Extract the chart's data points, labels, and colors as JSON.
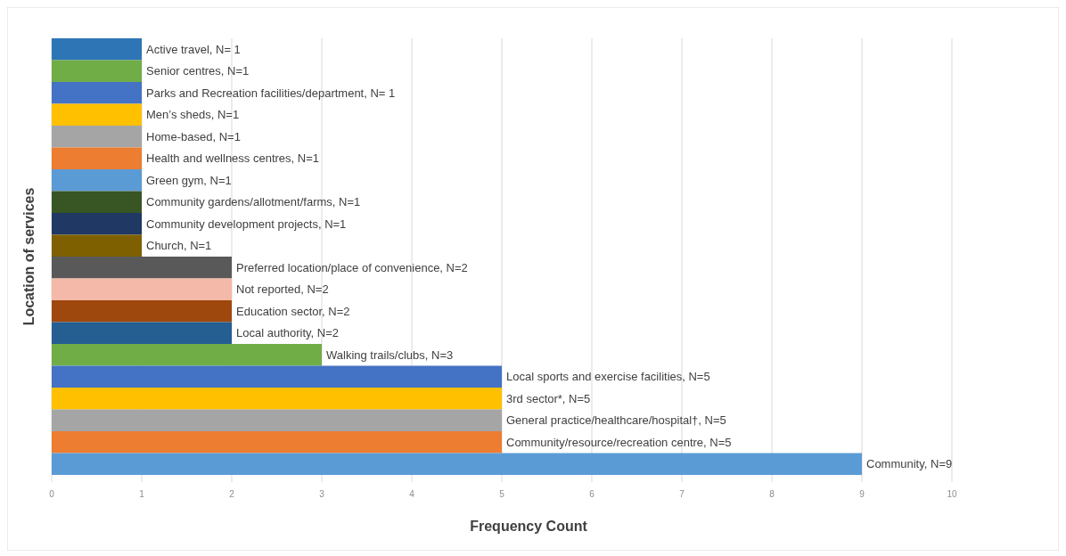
{
  "chart_data": {
    "type": "bar",
    "orientation": "horizontal",
    "xlabel": "Frequency Count",
    "ylabel": "Location of services",
    "categories": [
      null,
      null,
      null,
      null,
      null,
      null,
      null,
      null,
      null,
      null,
      null,
      null,
      null,
      null,
      null,
      null,
      null,
      null,
      null,
      null
    ],
    "values": [
      1,
      1,
      1,
      1,
      1,
      1,
      1,
      1,
      1,
      1,
      2,
      2,
      2,
      2,
      3,
      5,
      5,
      5,
      5,
      9
    ],
    "colors": [
      "#2e75b6",
      "#70ad47",
      "#4472c4",
      "#ffc000",
      "#a5a5a5",
      "#ed7d31",
      "#5b9bd5",
      "#375623",
      "#1f3864",
      "#7f6000",
      "#595959",
      "#f4b9a8",
      "#9e480e",
      "#255e91",
      "#70ad47",
      "#4472c4",
      "#ffc000",
      "#a5a5a5",
      "#ed7d31",
      "#5b9bd5"
    ],
    "value_labels": [
      "Active travel, N= 1",
      "Senior centres, N=1",
      "Parks and Recreation facilities/department, N= 1",
      "Men’s sheds, N=1",
      "Home-based, N=1",
      "Health and wellness centres, N=1",
      "Green gym,  N=1",
      "Community gardens/allotment/farms, N=1",
      "Community development  projects, N=1",
      "Church, N=1",
      "Preferred location/place of convenience, N=2",
      "Not reported,  N=2",
      "Education sector, N=2",
      "Local authority,  N=2",
      "Walking trails/clubs, N=3",
      "Local sports and exercise facilities, N=5",
      "3rd sector*, N=5",
      "General practice/healthcare/hospital†, N=5",
      "Community/resource/recreation  centre, N=5",
      "Community,  N=9"
    ],
    "xlim": [
      0,
      10
    ],
    "xticks": [
      0,
      1,
      2,
      3,
      4,
      5,
      6,
      7,
      8,
      9,
      10
    ],
    "grid": "x",
    "tick_labels": "x"
  }
}
